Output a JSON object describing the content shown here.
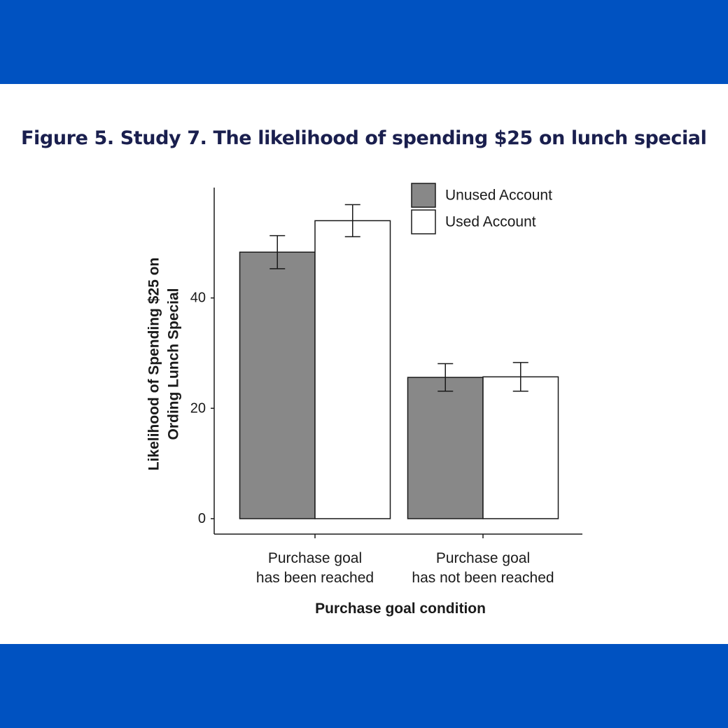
{
  "page": {
    "figure_title": "Figure 5. Study 7. The likelihood of spending $25 on lunch special",
    "band_color": "#0052C1",
    "title_color": "#1A1F4E"
  },
  "chart_data": {
    "type": "bar",
    "categories": [
      [
        "Purchase goal",
        "has been reached"
      ],
      [
        "Purchase goal",
        "has not been reached"
      ]
    ],
    "series": [
      {
        "name": "Unused Account",
        "color": "#888888",
        "values": [
          48.3,
          25.6
        ],
        "error_low": [
          45.3,
          23.1
        ],
        "error_high": [
          51.3,
          28.1
        ]
      },
      {
        "name": "Used Account",
        "color": "#ffffff",
        "values": [
          54.0,
          25.7
        ],
        "error_low": [
          51.1,
          23.1
        ],
        "error_high": [
          56.9,
          28.3
        ]
      }
    ],
    "xlabel": "Purchase goal condition",
    "ylabel": [
      "Likelihood of Spending $25 on",
      "Ording Lunch Special"
    ],
    "yticks": [
      0,
      20,
      40
    ],
    "ylim": [
      -2.8,
      60
    ],
    "legend_position": "top-right",
    "grid": false
  }
}
